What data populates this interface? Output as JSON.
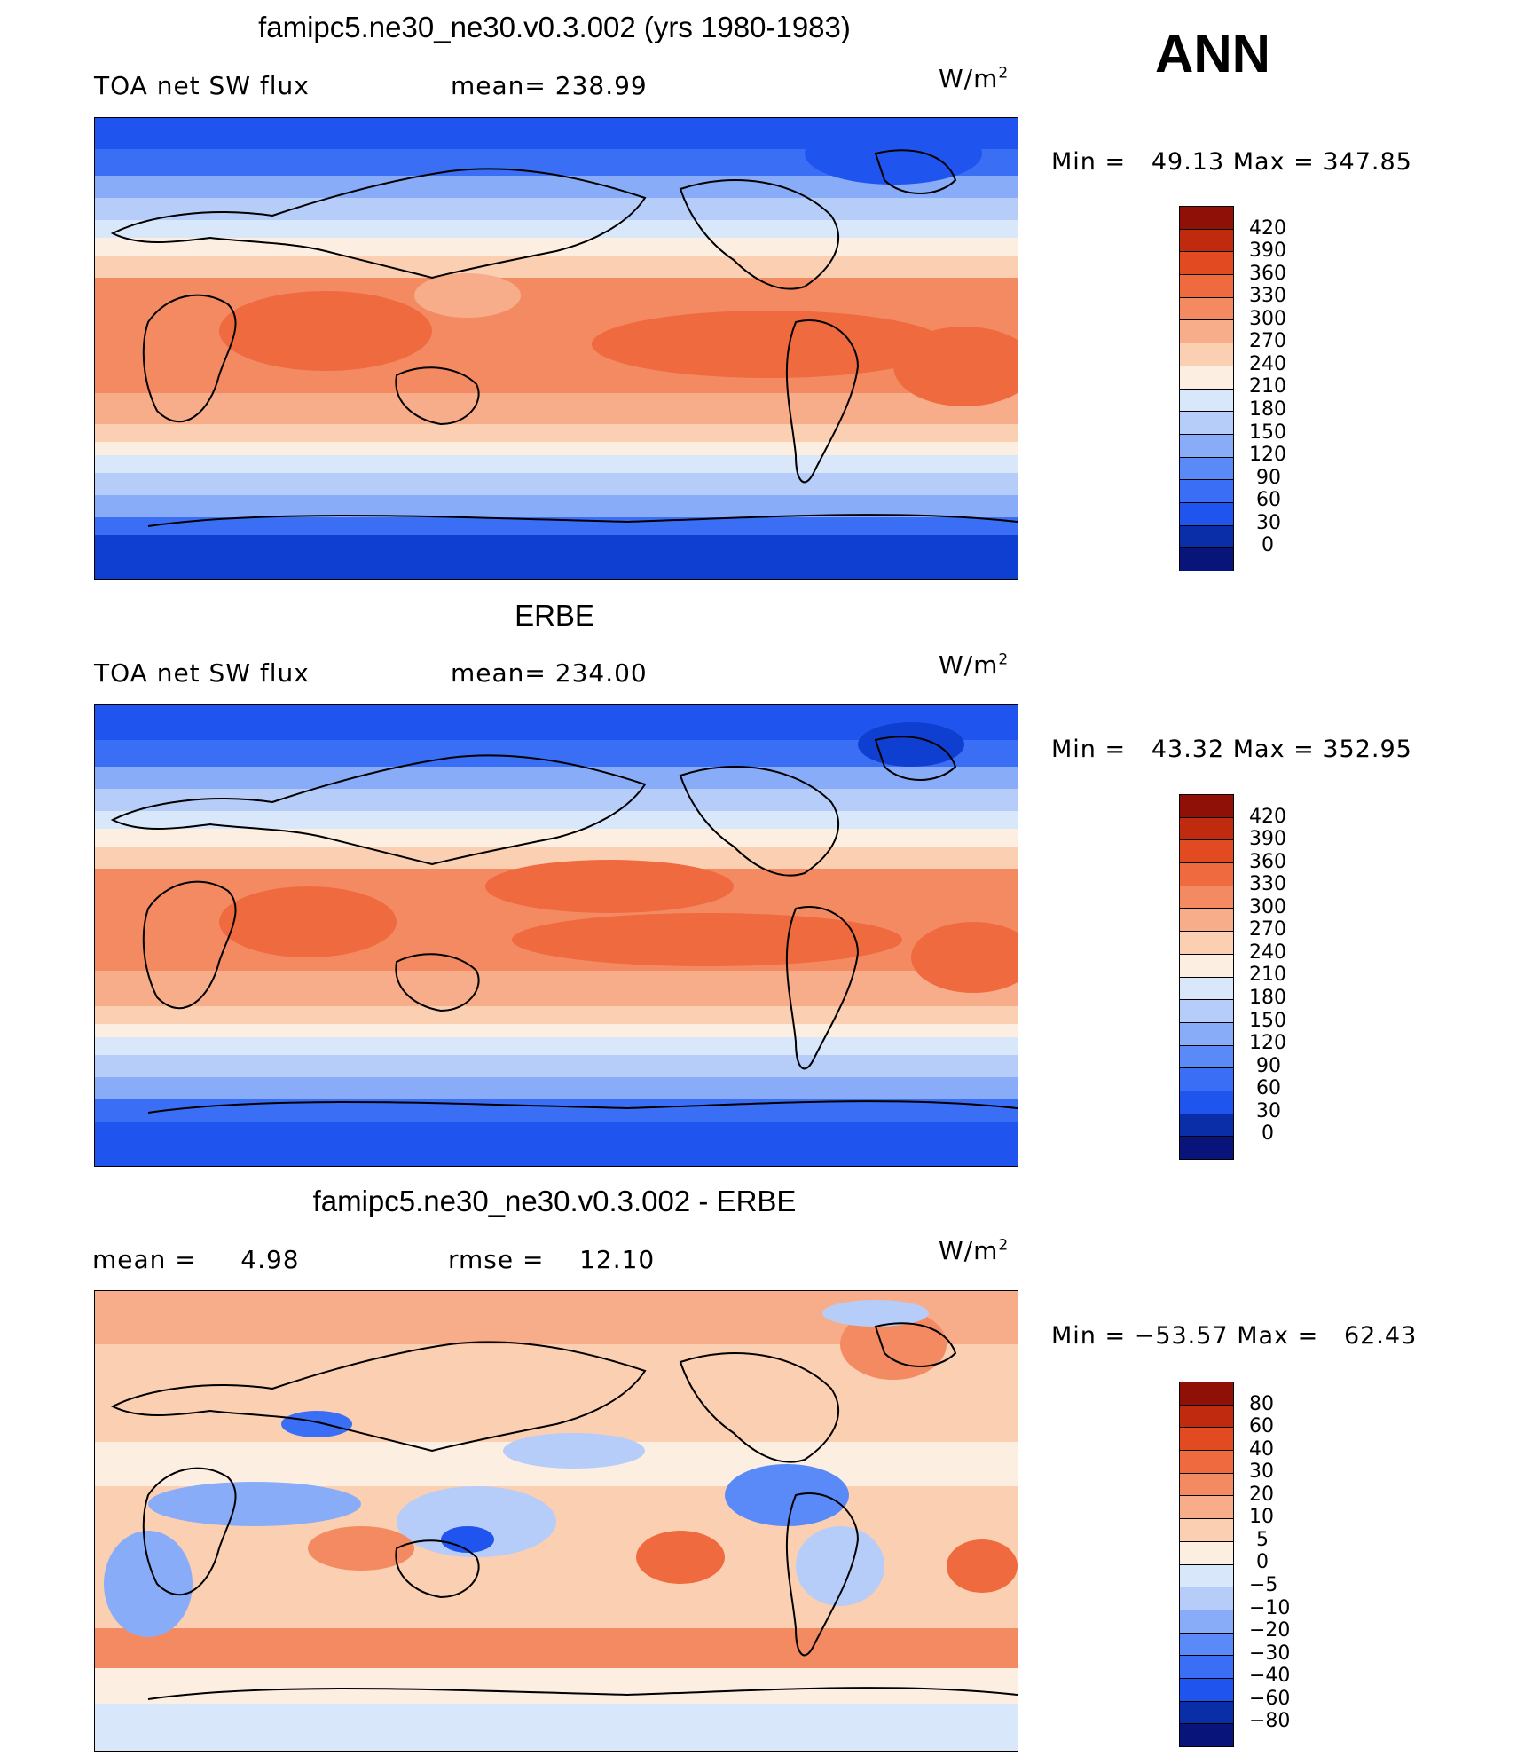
{
  "season": "ANN",
  "units": "W/m",
  "units_exp": "2",
  "colors": {
    "main": [
      "#08147a",
      "#0a2ea8",
      "#0f3fd0",
      "#1f55ee",
      "#3a6ef5",
      "#5a8af8",
      "#89acf8",
      "#b5cdf8",
      "#d9e7fb",
      "#fdeee2",
      "#fbcfb2",
      "#f8ad8a",
      "#f48a62",
      "#ef6a3e",
      "#e24a22",
      "#c02b10",
      "#8e1007"
    ],
    "diff": [
      "#08147a",
      "#0a2ea8",
      "#0f3fd0",
      "#1f55ee",
      "#3a6ef5",
      "#5a8af8",
      "#89acf8",
      "#b5cdf8",
      "#d9e7fb",
      "#fdeee2",
      "#fbcfb2",
      "#f8ad8a",
      "#f48a62",
      "#ef6a3e",
      "#e24a22",
      "#c02b10",
      "#8e1007"
    ]
  },
  "panels": [
    {
      "title": "famipc5.ne30_ne30.v0.3.002 (yrs 1980-1983)",
      "left_label": "TOA net SW flux",
      "mid_label": "mean= 238.99",
      "minmax": "Min =   49.13 Max = 347.85",
      "levels": [
        "420",
        "390",
        "360",
        "330",
        "300",
        "270",
        "240",
        "210",
        "180",
        "150",
        "120",
        "90",
        "60",
        "30",
        "0"
      ],
      "kind": "main"
    },
    {
      "title": "ERBE",
      "left_label": "TOA net SW flux",
      "mid_label": "mean= 234.00",
      "minmax": "Min =   43.32 Max = 352.95",
      "levels": [
        "420",
        "390",
        "360",
        "330",
        "300",
        "270",
        "240",
        "210",
        "180",
        "150",
        "120",
        "90",
        "60",
        "30",
        "0"
      ],
      "kind": "main"
    },
    {
      "title": "famipc5.ne30_ne30.v0.3.002 - ERBE",
      "left_label": "mean =     4.98",
      "mid_label": "rmse =    12.10",
      "minmax": "Min = −53.57 Max =   62.43",
      "levels": [
        "80",
        "60",
        "40",
        "30",
        "20",
        "10",
        "5",
        "0",
        "−5",
        "−10",
        "−20",
        "−30",
        "−40",
        "−60",
        "−80"
      ],
      "kind": "diff"
    }
  ]
}
